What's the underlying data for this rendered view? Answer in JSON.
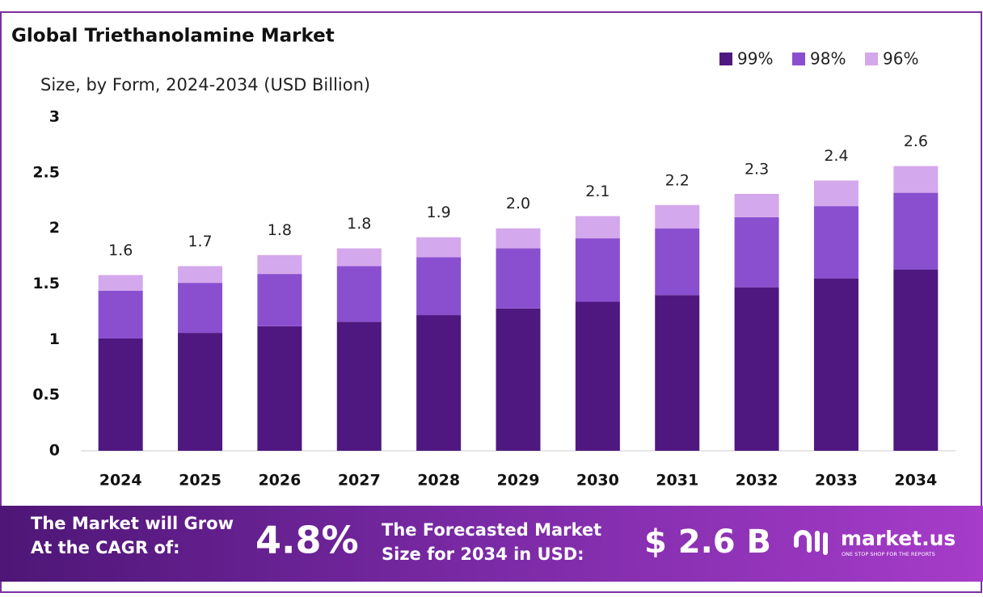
{
  "chart_data": {
    "type": "stacked-bar",
    "title": "Global Triethanolamine Market",
    "subtitle": "Size, by Form, 2024-2034 (USD Billion)",
    "categories": [
      "2024",
      "2025",
      "2026",
      "2027",
      "2028",
      "2029",
      "2030",
      "2031",
      "2032",
      "2033",
      "2034"
    ],
    "series": [
      {
        "name": "99%",
        "color": "#4f1880",
        "values": [
          1.01,
          1.06,
          1.12,
          1.16,
          1.22,
          1.28,
          1.34,
          1.4,
          1.47,
          1.55,
          1.63
        ]
      },
      {
        "name": "98%",
        "color": "#8a4fcf",
        "values": [
          0.43,
          0.45,
          0.47,
          0.5,
          0.52,
          0.54,
          0.57,
          0.6,
          0.63,
          0.65,
          0.69
        ]
      },
      {
        "name": "96%",
        "color": "#d4a8ec",
        "values": [
          0.14,
          0.15,
          0.17,
          0.16,
          0.18,
          0.18,
          0.2,
          0.21,
          0.21,
          0.23,
          0.24
        ]
      }
    ],
    "totals": {
      "values": [
        1.6,
        1.7,
        1.8,
        1.8,
        1.9,
        2.0,
        2.1,
        2.2,
        2.3,
        2.4,
        2.6
      ],
      "value_labels": [
        "1.6",
        "1.7",
        "1.8",
        "1.8",
        "1.9",
        "2.0",
        "2.1",
        "2.2",
        "2.3",
        "2.4",
        "2.6"
      ]
    },
    "ylim": [
      0,
      3
    ],
    "yticks": [
      0,
      0.5,
      1,
      1.5,
      2,
      2.5,
      3
    ],
    "grid": false,
    "legend": "top-right"
  },
  "footer": {
    "cagr_text": [
      "The Market will Grow",
      "At the CAGR of:"
    ],
    "cagr": "4.8%",
    "forecast_text": [
      "The Forecasted Market",
      "Size for 2034 in USD:"
    ],
    "forecast": "$ 2.6 B",
    "brand": "market.us",
    "tagline": "ONE STOP SHOP FOR THE REPORTS"
  }
}
